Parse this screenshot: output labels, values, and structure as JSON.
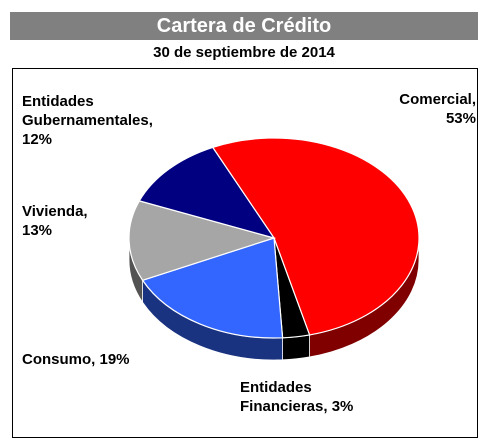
{
  "chart_data": {
    "type": "pie",
    "title": "Cartera de Crédito",
    "subtitle": "30 de septiembre de 2014",
    "values": [
      53,
      3,
      19,
      13,
      12
    ],
    "value_labels": [
      "Comercial,\n53%",
      "Entidades\nFinancieras, 3%",
      "Consumo,  19%",
      "Vivienda,\n13%",
      "Entidades\nGubernamentales,\n12%"
    ],
    "colors": [
      "#ff0000",
      "#000000",
      "#3366ff",
      "#a6a6a6",
      "#000080"
    ]
  }
}
